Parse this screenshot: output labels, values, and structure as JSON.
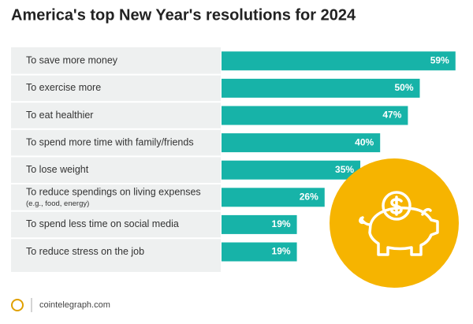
{
  "chart_data": {
    "type": "bar",
    "orientation": "horizontal",
    "title": "America's top New Year's resolutions for 2024",
    "categories": [
      "To save more money",
      "To exercise more",
      "To eat healthier",
      "To spend more time with family/friends",
      "To lose weight",
      "To reduce spendings on living expenses",
      "To spend less time on social media",
      "To reduce stress on the job"
    ],
    "category_notes": [
      null,
      null,
      null,
      null,
      null,
      "(e.g., food, energy)",
      null,
      null
    ],
    "values": [
      59,
      50,
      47,
      40,
      35,
      26,
      19,
      19
    ],
    "value_labels": [
      "59%",
      "50%",
      "47%",
      "40%",
      "35%",
      "26%",
      "19%",
      "19%"
    ],
    "color": "#17b3a8",
    "source": "cointelegraph.com"
  }
}
